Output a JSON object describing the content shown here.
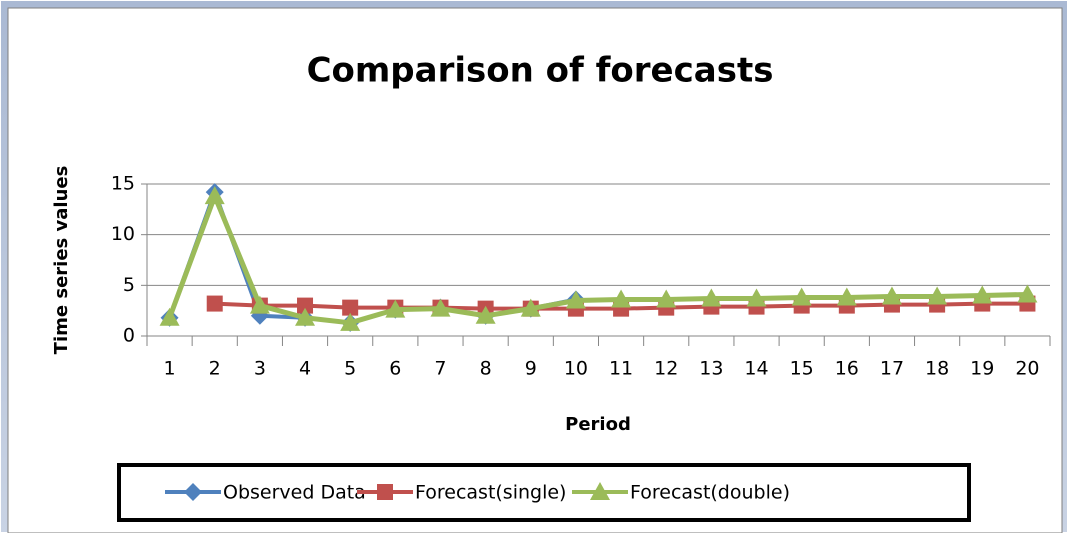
{
  "chart_data": {
    "type": "line",
    "title": "Comparison of forecasts",
    "x_label": "Period",
    "y_label": "Time series  values",
    "categories": [
      "1",
      "2",
      "3",
      "4",
      "5",
      "6",
      "7",
      "8",
      "9",
      "10",
      "11",
      "12",
      "13",
      "14",
      "15",
      "16",
      "17",
      "18",
      "19",
      "20"
    ],
    "series": [
      {
        "name": "Observed Data",
        "color": "#4f81bd",
        "marker": "diamond",
        "values": [
          1.8,
          14.2,
          2.0,
          1.8,
          1.3,
          2.6,
          2.8,
          2.0,
          2.7,
          3.6,
          null,
          null,
          null,
          null,
          null,
          null,
          null,
          null,
          null,
          null
        ]
      },
      {
        "name": "Forecast(single)",
        "color": "#c0504d",
        "marker": "square",
        "values": [
          null,
          3.2,
          3.0,
          3.0,
          2.8,
          2.8,
          2.8,
          2.7,
          2.7,
          2.7,
          2.7,
          2.8,
          2.9,
          2.9,
          3.0,
          3.0,
          3.1,
          3.1,
          3.2,
          3.2
        ]
      },
      {
        "name": "Forecast(double)",
        "color": "#9bbb59",
        "marker": "triangle",
        "values": [
          1.8,
          13.8,
          3.0,
          1.8,
          1.3,
          2.6,
          2.7,
          2.0,
          2.7,
          3.5,
          3.6,
          3.6,
          3.7,
          3.7,
          3.8,
          3.8,
          3.9,
          3.9,
          4.0,
          4.1
        ]
      }
    ],
    "ylim": [
      0,
      15
    ],
    "yticks": [
      0,
      5,
      10,
      15
    ],
    "grid": true,
    "legend": "bottom"
  }
}
